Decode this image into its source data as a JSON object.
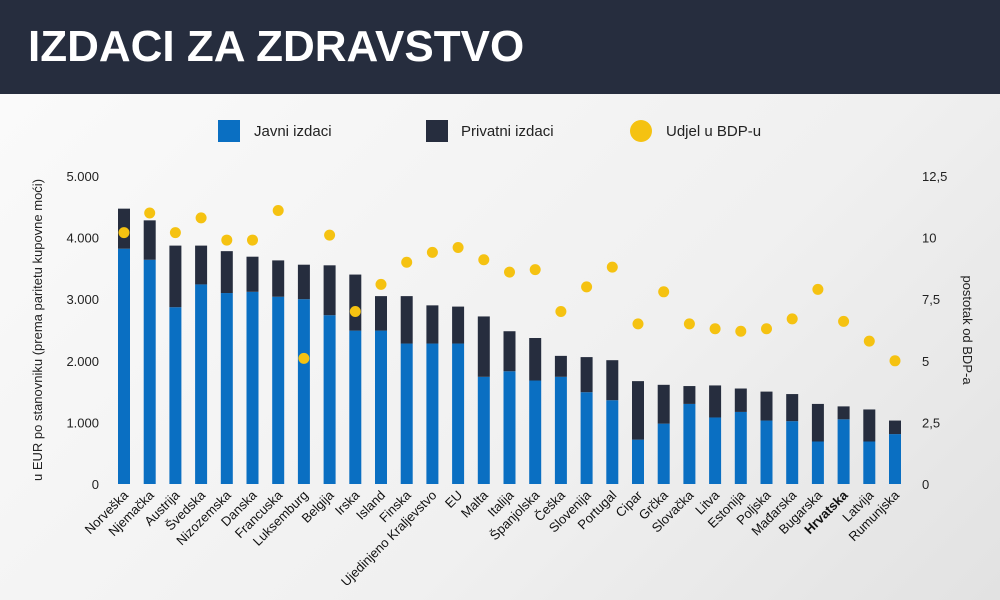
{
  "header": {
    "title": "IZDACI ZA ZDRAVSTVO"
  },
  "colors": {
    "header_bg": "#262d3e",
    "public": "#0a6fc2",
    "private": "#262d3e",
    "share": "#f5c211"
  },
  "chart_data": {
    "type": "bar",
    "stacked": true,
    "categories": [
      "Norveška",
      "Njemačka",
      "Austrija",
      "Švedska",
      "Nizozemska",
      "Danska",
      "Francuska",
      "Luksemburg",
      "Belgija",
      "Irska",
      "Island",
      "Finska",
      "Ujedinjeno Kraljevstvo",
      "EU",
      "Malta",
      "Italija",
      "Španjolska",
      "Češka",
      "Slovenija",
      "Portugal",
      "Cipar",
      "Grčka",
      "Slovačka",
      "Litva",
      "Estonija",
      "Poljska",
      "Mađarska",
      "Bugarska",
      "Hrvatska",
      "Latvija",
      "Rumunjska"
    ],
    "highlight_category": "Hrvatska",
    "series": [
      {
        "name": "Javni izdaci",
        "type": "bar",
        "axis": "left",
        "values": [
          3820,
          3640,
          2870,
          3240,
          3100,
          3120,
          3040,
          3000,
          2740,
          2490,
          2490,
          2280,
          2280,
          2280,
          1740,
          1830,
          1680,
          1740,
          1490,
          1360,
          720,
          980,
          1300,
          1080,
          1170,
          1030,
          1020,
          690,
          1050,
          690,
          810
        ]
      },
      {
        "name": "Privatni izdaci",
        "type": "bar",
        "axis": "left",
        "values": [
          650,
          640,
          1000,
          630,
          680,
          570,
          590,
          560,
          810,
          910,
          560,
          770,
          620,
          600,
          980,
          650,
          690,
          340,
          570,
          650,
          950,
          630,
          290,
          520,
          380,
          470,
          440,
          610,
          210,
          520,
          220
        ]
      },
      {
        "name": "Udjel u BDP-u",
        "type": "scatter",
        "axis": "right",
        "values": [
          10.2,
          11.0,
          10.2,
          10.8,
          9.9,
          9.9,
          11.1,
          5.1,
          10.1,
          7.0,
          8.1,
          9.0,
          9.4,
          9.6,
          9.1,
          8.6,
          8.7,
          7.0,
          8.0,
          8.8,
          6.5,
          7.8,
          6.5,
          6.3,
          6.2,
          6.3,
          6.7,
          7.9,
          6.6,
          5.8,
          5.0
        ]
      }
    ],
    "ylabel": "u EUR po stanovniku (prema paritetu kupovne moći)",
    "ylim": [
      0,
      5000
    ],
    "yticks": [
      0,
      1000,
      2000,
      3000,
      4000,
      5000
    ],
    "ytick_labels": [
      "0",
      "1.000",
      "2.000",
      "3.000",
      "4.000",
      "5.000"
    ],
    "y2label": "postotak od BDP-a",
    "y2lim": [
      0,
      12.5
    ],
    "y2ticks": [
      0,
      2.5,
      5,
      7.5,
      10,
      12.5
    ],
    "y2tick_labels": [
      "0",
      "2,5",
      "5",
      "7,5",
      "10",
      "12,5"
    ],
    "legend": {
      "placement": "top",
      "items": [
        "Javni izdaci",
        "Privatni izdaci",
        "Udjel u BDP-u"
      ]
    },
    "grid": false
  }
}
